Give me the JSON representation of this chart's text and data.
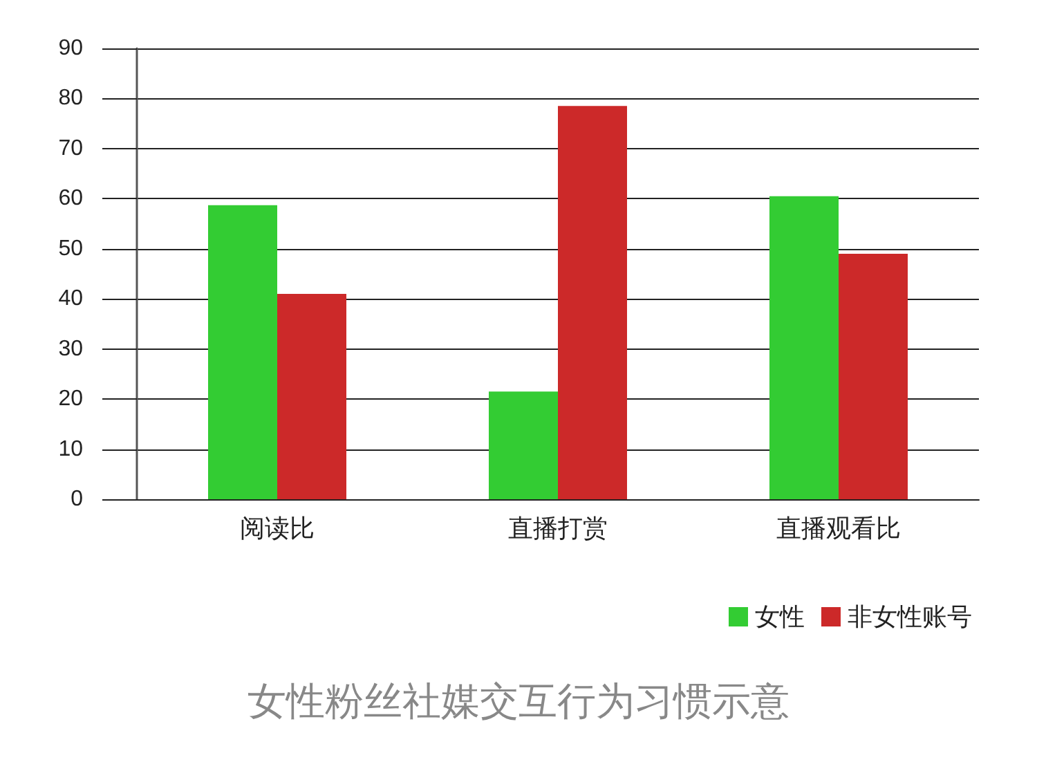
{
  "chart_data": {
    "type": "bar",
    "title": "女性粉丝社媒交互行为习惯示意",
    "categories": [
      "阅读比",
      "直播打赏",
      "直播观看比"
    ],
    "series": [
      {
        "name": "女性",
        "color": "#33cc33",
        "values": [
          58.7,
          21.5,
          60.5
        ]
      },
      {
        "name": "非女性账号",
        "color": "#cc2929",
        "values": [
          41,
          78.5,
          49
        ]
      }
    ],
    "ylim": [
      0,
      90
    ],
    "yticks": [
      0,
      10,
      20,
      30,
      40,
      50,
      60,
      70,
      80,
      90
    ],
    "grid": "y",
    "legend": "bottom right"
  }
}
